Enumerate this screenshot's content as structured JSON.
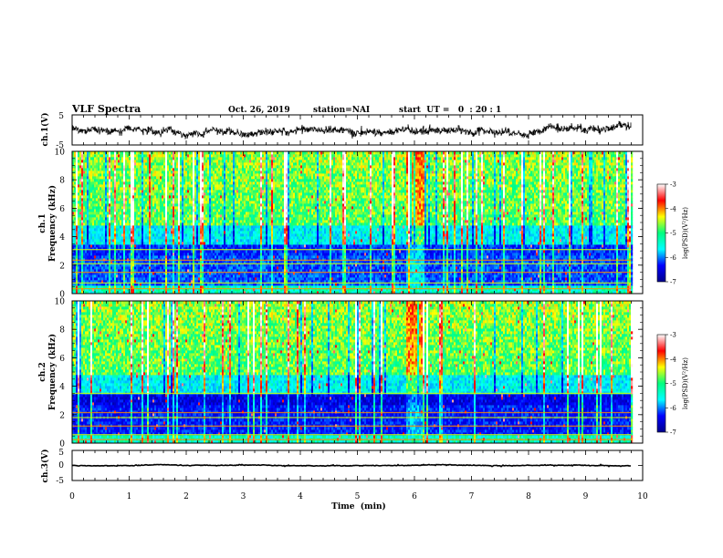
{
  "header": {
    "title": "VLF Spectra",
    "date": "Oct. 26, 2019",
    "station": "station=NAI",
    "start_ut": "start  UT =   0  : 20 : 1"
  },
  "chart_data": [
    {
      "type": "line",
      "ylabel": "ch.1(V)",
      "ylim": [
        -5,
        5
      ],
      "yticks": [
        "5",
        "-5"
      ],
      "xlim": [
        0,
        10
      ],
      "series": [
        {
          "baseline": 0,
          "spread": 2.2,
          "x_end": 9.8
        }
      ]
    },
    {
      "type": "heatmap",
      "ylabel_top": "ch.1",
      "ylabel": "Frequency (kHz)",
      "ylim": [
        0,
        10
      ],
      "yticks": [
        "0",
        "2",
        "4",
        "6",
        "8",
        "10"
      ],
      "xlim": [
        0,
        10
      ],
      "x_end": 9.8,
      "colorbar": {
        "label": "log(PSD)(V²/Hz)",
        "range": [
          -7,
          -3
        ],
        "ticks": [
          "-3",
          "-4",
          "-5",
          "-6",
          "-7"
        ],
        "colors": [
          "#00008b",
          "#0000ff",
          "#00ffff",
          "#00ff7f",
          "#ffff00",
          "#ff0000",
          "#ffffff"
        ]
      }
    },
    {
      "type": "heatmap",
      "ylabel_top": "ch.2",
      "ylabel": "Frequency (kHz)",
      "ylim": [
        0,
        10
      ],
      "yticks": [
        "0",
        "2",
        "4",
        "6",
        "8",
        "10"
      ],
      "xlim": [
        0,
        10
      ],
      "x_end": 9.8,
      "colorbar": {
        "label": "log(PSD)(V²/Hz)",
        "range": [
          -7,
          -3
        ],
        "ticks": [
          "-3",
          "-4",
          "-5",
          "-6",
          "-7"
        ],
        "colors": [
          "#00008b",
          "#0000ff",
          "#00ffff",
          "#00ff7f",
          "#ffff00",
          "#ff0000",
          "#ffffff"
        ]
      }
    },
    {
      "type": "line",
      "ylabel": "ch.3(V)",
      "xlabel": "Time  (min)",
      "ylim": [
        -5,
        5
      ],
      "yticks": [
        "5",
        "0",
        "-5"
      ],
      "xlim": [
        0,
        10
      ],
      "xticks": [
        "0",
        "1",
        "2",
        "3",
        "4",
        "5",
        "6",
        "7",
        "8",
        "9",
        "10"
      ],
      "series": [
        {
          "baseline": 0,
          "spread": 0.3,
          "x_end": 9.8
        }
      ]
    }
  ]
}
